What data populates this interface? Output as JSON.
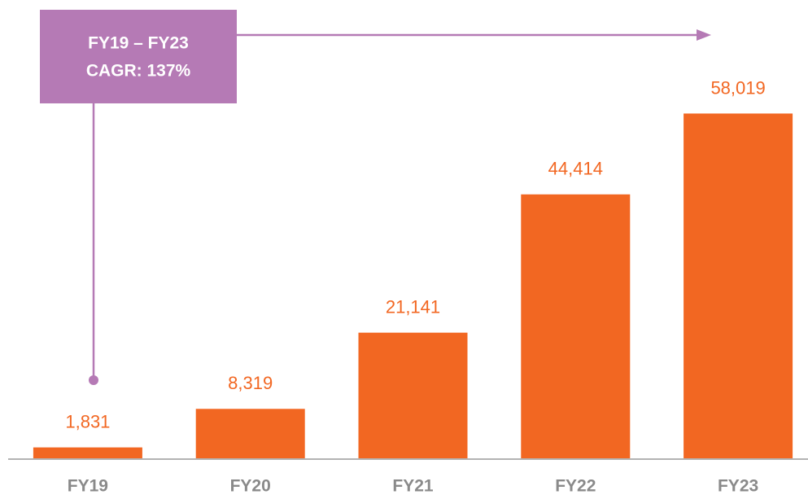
{
  "chart_data": {
    "type": "bar",
    "categories": [
      "FY19",
      "FY20",
      "FY21",
      "FY22",
      "FY23"
    ],
    "values": [
      1831,
      8319,
      21141,
      44414,
      58019
    ],
    "value_labels": [
      "1,831",
      "8,319",
      "21,141",
      "44,414",
      "58,019"
    ],
    "color": "#f26722",
    "ylim": [
      0,
      60000
    ],
    "annotation": [
      "FY19 – FY23",
      "CAGR: 137%"
    ],
    "annotation_color": "#b57ab5"
  }
}
